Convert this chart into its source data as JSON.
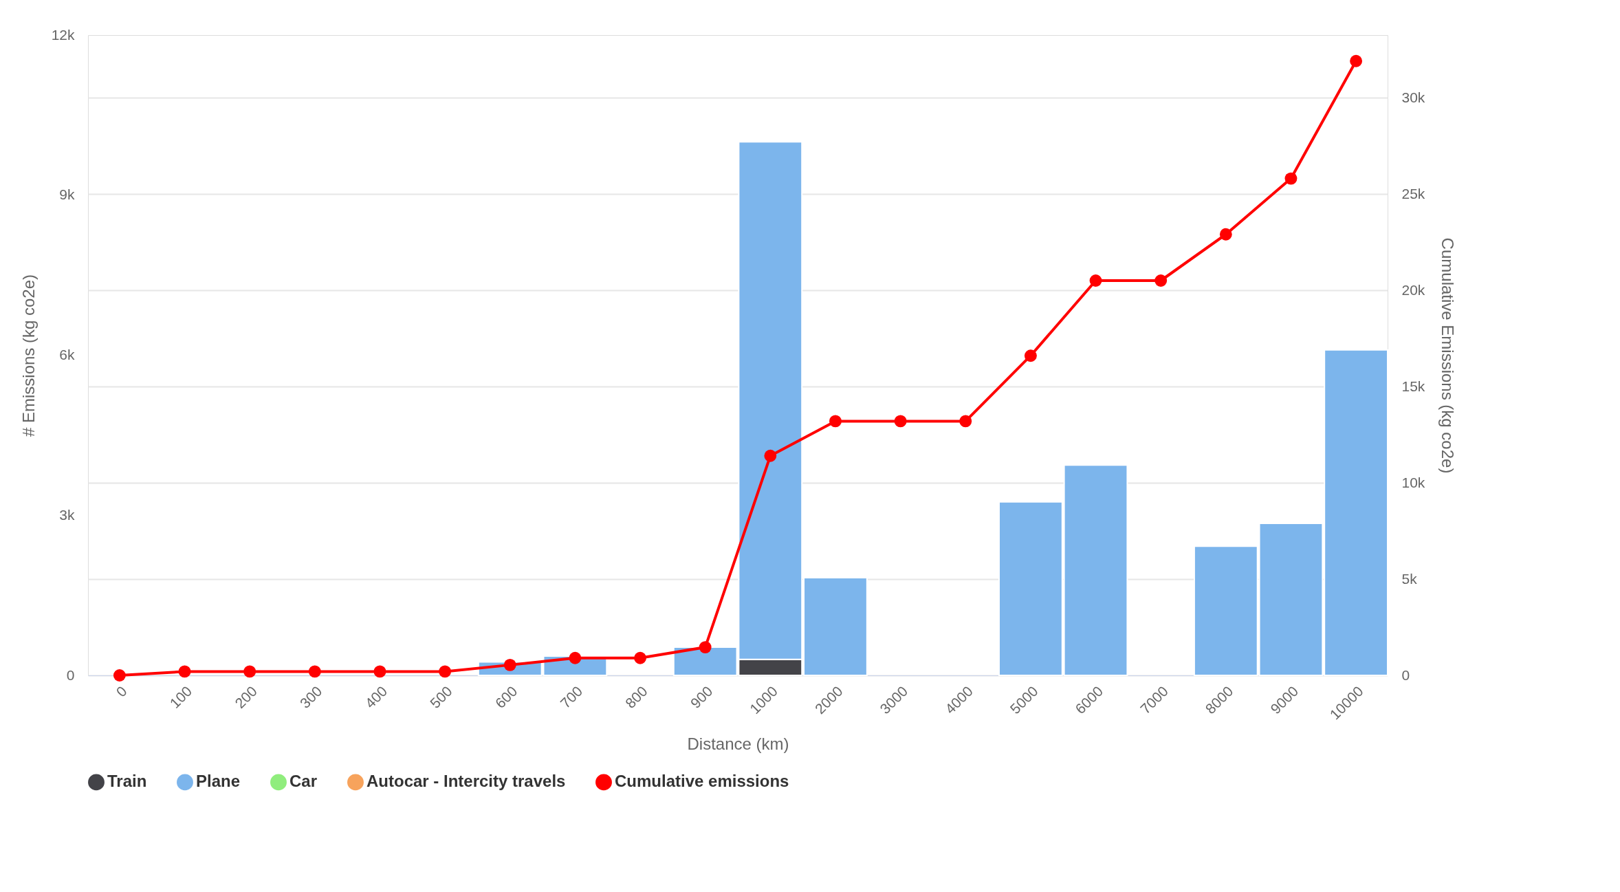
{
  "chart_data": {
    "type": "bar",
    "stacked": true,
    "xlabel": "Distance (km)",
    "ylabel": "# Emissions (kg co2e)",
    "y2label": "Cumulative Emissions (kg co2e)",
    "categories": [
      "0",
      "100",
      "200",
      "300",
      "400",
      "500",
      "600",
      "700",
      "800",
      "900",
      "1000",
      "2000",
      "3000",
      "4000",
      "5000",
      "6000",
      "7000",
      "8000",
      "9000",
      "10000"
    ],
    "series": [
      {
        "name": "Train",
        "color": "#434348",
        "values": [
          null,
          null,
          null,
          null,
          null,
          null,
          null,
          null,
          null,
          null,
          300,
          null,
          null,
          null,
          null,
          null,
          null,
          null,
          null,
          null
        ]
      },
      {
        "name": "Plane",
        "color": "#7cb5ec",
        "values": [
          null,
          null,
          null,
          null,
          null,
          null,
          250,
          360,
          null,
          530,
          9700,
          1830,
          null,
          null,
          3250,
          3940,
          null,
          2420,
          2850,
          6100
        ]
      },
      {
        "name": "Car",
        "color": "#90ed7d",
        "values": [
          null,
          null,
          null,
          null,
          null,
          null,
          null,
          null,
          null,
          null,
          null,
          null,
          null,
          null,
          null,
          null,
          null,
          null,
          null,
          null
        ]
      },
      {
        "name": "Autocar - Intercity travels",
        "color": "#f7a35c",
        "values": [
          null,
          null,
          null,
          null,
          null,
          null,
          null,
          null,
          null,
          null,
          null,
          null,
          null,
          null,
          null,
          null,
          null,
          null,
          null,
          null
        ]
      },
      {
        "name": "Cumulative emissions",
        "type": "line",
        "axis": "y2",
        "color": "#ff0000",
        "marker": "circle",
        "line_style": "solid",
        "values": [
          0,
          200,
          200,
          200,
          200,
          200,
          540,
          900,
          900,
          1460,
          11400,
          13200,
          13200,
          13200,
          16600,
          20500,
          20500,
          22900,
          25800,
          31900
        ]
      }
    ],
    "ylim": [
      0,
      12000
    ],
    "yticks": [
      {
        "value": 0,
        "label": "0"
      },
      {
        "value": 3000,
        "label": "3k"
      },
      {
        "value": 6000,
        "label": "6k"
      },
      {
        "value": 9000,
        "label": "9k"
      },
      {
        "value": 12000,
        "label": "12k"
      }
    ],
    "y2lim": [
      0,
      33250
    ],
    "y2ticks": [
      {
        "value": 0,
        "label": "0"
      },
      {
        "value": 5000,
        "label": "5k"
      },
      {
        "value": 10000,
        "label": "10k"
      },
      {
        "value": 15000,
        "label": "15k"
      },
      {
        "value": 20000,
        "label": "20k"
      },
      {
        "value": 25000,
        "label": "25k"
      },
      {
        "value": 30000,
        "label": "30k"
      }
    ],
    "grid": "y",
    "legend": "bottom"
  }
}
